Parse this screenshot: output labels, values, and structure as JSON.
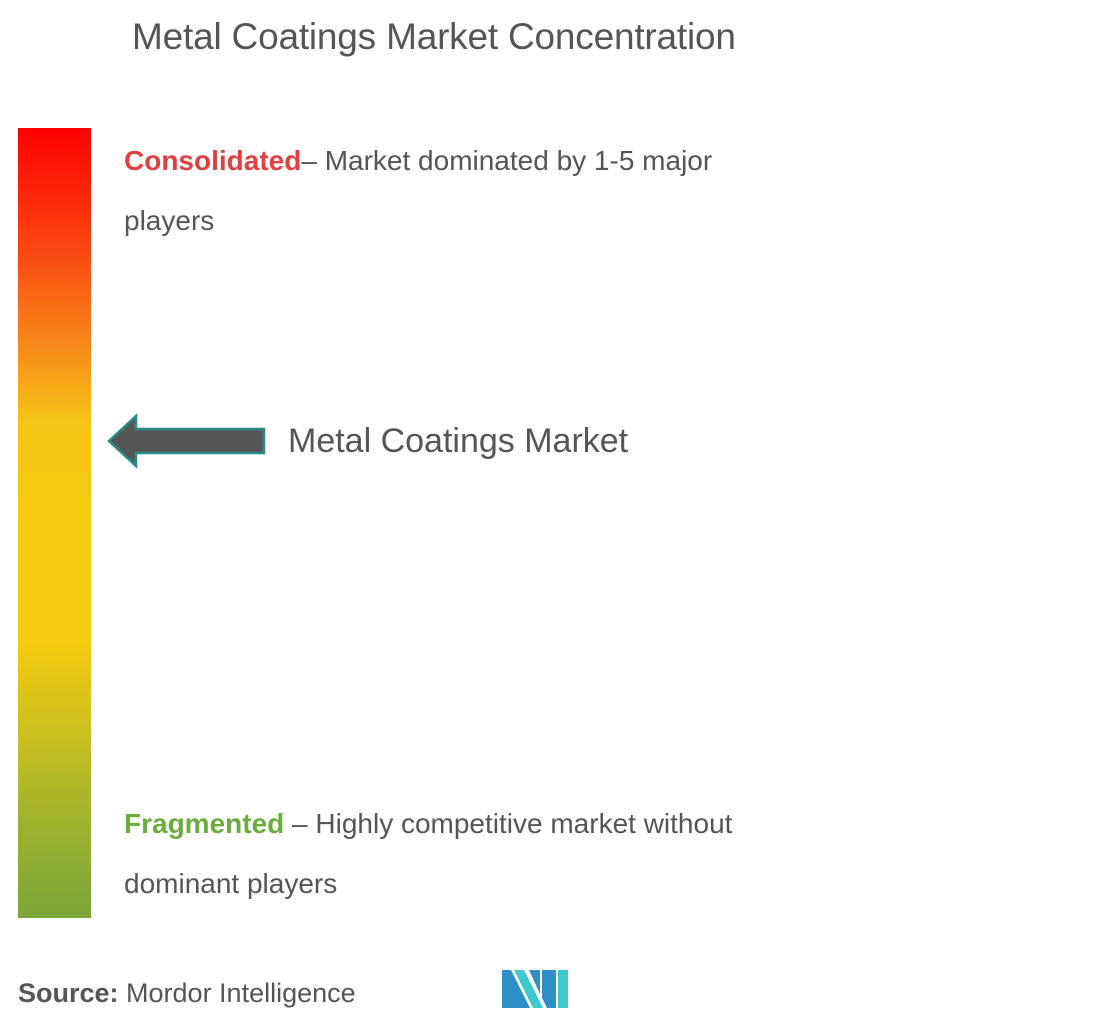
{
  "title": "Metal Coatings Market Concentration",
  "scale": {
    "top_color": "#ff0000",
    "mid_color": "#f5cb0f",
    "bottom_color": "#79a63a"
  },
  "consolidated": {
    "keyword": "Consolidated",
    "description": "– Market dominated by 1-5 major players",
    "color": "#e04040"
  },
  "fragmented": {
    "keyword": "Fragmented",
    "description": " – Highly competitive market without dominant players",
    "color": "#6aad3d"
  },
  "marker": {
    "label": "Metal Coatings Market",
    "arrow_color": "#555555",
    "arrow_outline": "#2a8a8a"
  },
  "source": {
    "label": "Source:",
    "value": " Mordor Intelligence"
  },
  "logo": {
    "icon": "mordor-intelligence-logo",
    "colors": [
      "#2d8fc6",
      "#3fc8d0"
    ]
  }
}
